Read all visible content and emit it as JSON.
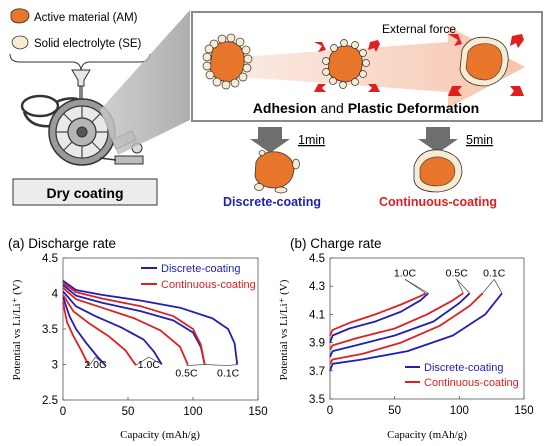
{
  "legend": {
    "active_material": "Active material (AM)",
    "solid_electrolyte": "Solid electrolyte (SE)"
  },
  "process": {
    "machine_label": "Dry coating",
    "external_force": "External force",
    "mechanism": "Adhesion and Plastic Deformation",
    "mechanism_part1": "Adhesion",
    "mechanism_part2": " and ",
    "mechanism_part3": "Plastic Deformation",
    "time_short": "1min",
    "time_long": "5min",
    "discrete_label": "Discrete-coating",
    "continuous_label": "Continuous-coating"
  },
  "colors": {
    "am_fill": "#e8762a",
    "se_fill": "#f7ecd2",
    "discrete": "#1f1fb4",
    "continuous": "#e02020",
    "panel_border": "#8a8a8a",
    "arrow_gray": "#6e6e6e"
  },
  "chart_data": [
    {
      "type": "line",
      "title": "(a) Discharge rate",
      "xlabel": "Capacity (mAh/g)",
      "ylabel": "Potential vs Li/Li⁺ (V)",
      "xlim": [
        0,
        150
      ],
      "ylim": [
        2.5,
        4.5
      ],
      "xticks": [
        "0",
        "50",
        "100",
        "150"
      ],
      "yticks": [
        "2.5",
        "3",
        "3.5",
        "4",
        "4.5"
      ],
      "legend_position": "top-right",
      "series": [
        {
          "name": "Discrete-coating",
          "color": "#1f1fb4",
          "curves": [
            {
              "rate": "2.0C",
              "x": [
                0,
                5,
                10,
                18,
                26,
                33
              ],
              "y": [
                3.95,
                3.68,
                3.5,
                3.3,
                3.12,
                2.98
              ]
            },
            {
              "rate": "1.0C",
              "x": [
                0,
                10,
                25,
                45,
                62,
                70,
                76
              ],
              "y": [
                4.03,
                3.82,
                3.68,
                3.52,
                3.35,
                3.18,
                3.0
              ]
            },
            {
              "rate": "0.5C",
              "x": [
                0,
                10,
                30,
                60,
                85,
                100,
                106,
                109
              ],
              "y": [
                4.12,
                3.97,
                3.87,
                3.75,
                3.62,
                3.45,
                3.25,
                3.0
              ]
            },
            {
              "rate": "0.1C",
              "x": [
                0,
                10,
                30,
                60,
                90,
                115,
                127,
                132,
                134
              ],
              "y": [
                4.18,
                4.05,
                3.98,
                3.9,
                3.8,
                3.65,
                3.5,
                3.3,
                3.0
              ]
            }
          ]
        },
        {
          "name": "Continuous-coating",
          "color": "#e02020",
          "curves": [
            {
              "rate": "2.0C",
              "x": [
                0,
                3,
                8,
                14,
                20
              ],
              "y": [
                3.88,
                3.6,
                3.4,
                3.2,
                2.98
              ]
            },
            {
              "rate": "1.0C",
              "x": [
                0,
                8,
                20,
                35,
                48,
                56
              ],
              "y": [
                3.98,
                3.75,
                3.58,
                3.4,
                3.2,
                2.99
              ]
            },
            {
              "rate": "0.5C",
              "x": [
                0,
                10,
                30,
                55,
                75,
                90,
                96
              ],
              "y": [
                4.08,
                3.92,
                3.8,
                3.65,
                3.48,
                3.25,
                3.0
              ]
            },
            {
              "rate": "0.1C",
              "x": [
                0,
                10,
                30,
                60,
                85,
                100,
                106,
                109
              ],
              "y": [
                4.15,
                4.02,
                3.93,
                3.82,
                3.68,
                3.5,
                3.28,
                3.0
              ]
            }
          ]
        }
      ],
      "rate_labels": [
        {
          "text": "2.0C",
          "at": [
            25,
            2.95
          ]
        },
        {
          "text": "1.0C",
          "at": [
            66,
            2.95
          ]
        },
        {
          "text": "0.5C",
          "at": [
            95,
            2.83
          ]
        },
        {
          "text": "0.1C",
          "at": [
            127,
            2.83
          ]
        }
      ]
    },
    {
      "type": "line",
      "title": "(b) Charge rate",
      "xlabel": "Capacity (mAh/g)",
      "ylabel": "Potential vs Li/Li⁺ (V)",
      "xlim": [
        0,
        150
      ],
      "ylim": [
        3.5,
        4.5
      ],
      "xticks": [
        "0",
        "50",
        "100",
        "150"
      ],
      "yticks": [
        "3.5",
        "3.7",
        "3.9",
        "4.1",
        "4.3",
        "4.5"
      ],
      "legend_position": "bottom-right",
      "series": [
        {
          "name": "Discrete-coating",
          "color": "#1f1fb4",
          "curves": [
            {
              "rate": "1.0C",
              "x": [
                0,
                2,
                15,
                35,
                55,
                70,
                76
              ],
              "y": [
                3.9,
                3.95,
                4.0,
                4.05,
                4.12,
                4.2,
                4.25
              ]
            },
            {
              "rate": "0.5C",
              "x": [
                0,
                2,
                20,
                50,
                80,
                100,
                108
              ],
              "y": [
                3.8,
                3.84,
                3.88,
                3.95,
                4.05,
                4.18,
                4.25
              ]
            },
            {
              "rate": "0.1C",
              "x": [
                0,
                2,
                25,
                60,
                95,
                120,
                133
              ],
              "y": [
                3.7,
                3.75,
                3.78,
                3.84,
                3.95,
                4.1,
                4.25
              ]
            }
          ]
        },
        {
          "name": "Continuous-coating",
          "color": "#e02020",
          "curves": [
            {
              "rate": "1.0C",
              "x": [
                0,
                2,
                15,
                35,
                55,
                70,
                74
              ],
              "y": [
                3.95,
                3.99,
                4.04,
                4.1,
                4.17,
                4.23,
                4.25
              ]
            },
            {
              "rate": "0.5C",
              "x": [
                0,
                2,
                20,
                50,
                75,
                95,
                103
              ],
              "y": [
                3.85,
                3.88,
                3.93,
                4.0,
                4.1,
                4.2,
                4.25
              ]
            },
            {
              "rate": "0.1C",
              "x": [
                0,
                2,
                25,
                55,
                85,
                108,
                118
              ],
              "y": [
                3.75,
                3.78,
                3.82,
                3.9,
                4.02,
                4.16,
                4.25
              ]
            }
          ]
        }
      ],
      "rate_labels": [
        {
          "text": "1.0C",
          "at": [
            58,
            4.37
          ]
        },
        {
          "text": "0.5C",
          "at": [
            98,
            4.37
          ]
        },
        {
          "text": "0.1C",
          "at": [
            127,
            4.37
          ]
        }
      ]
    }
  ]
}
